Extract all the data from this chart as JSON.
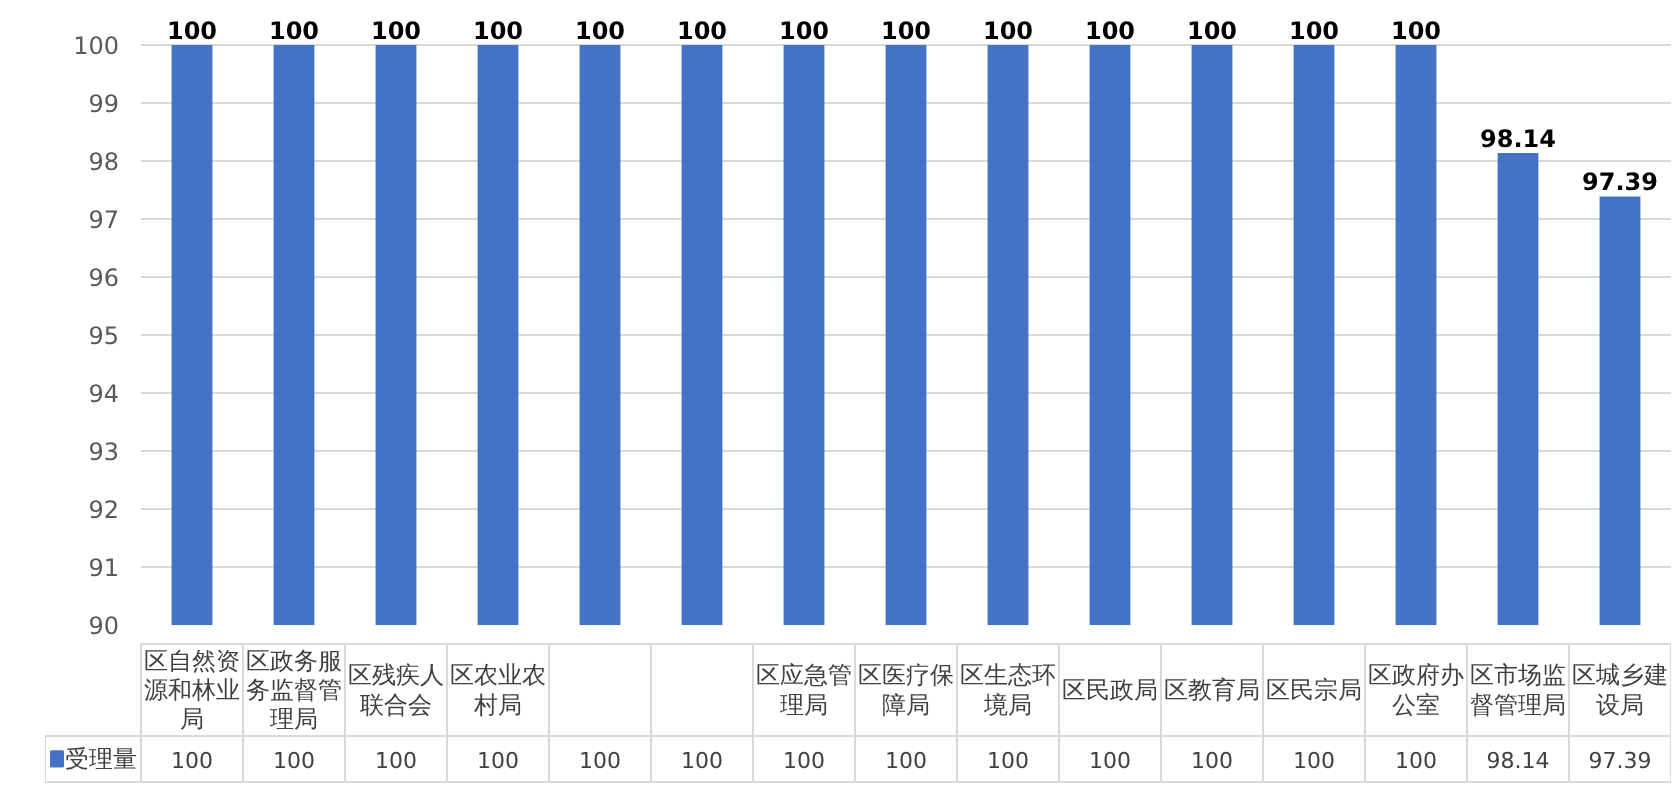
{
  "chart_data": {
    "type": "bar",
    "categories": [
      "区自然资源和林业局",
      "区政务服务监督管理局",
      "区残疾人联合会",
      "区农业农村局",
      null,
      null,
      "区应急管理局",
      "区医疗保障局",
      "区生态环境局",
      "区民政局",
      "区教育局",
      "区民宗局",
      "区政府办公室",
      "区市场监督管理局",
      "区城乡建设局"
    ],
    "series": [
      {
        "name": "受理量",
        "color": "#4472c4",
        "values": [
          100,
          100,
          100,
          100,
          100,
          100,
          100,
          100,
          100,
          100,
          100,
          100,
          100,
          98.14,
          97.39
        ],
        "value_labels": [
          "100",
          "100",
          "100",
          "100",
          "100",
          "100",
          "100",
          "100",
          "100",
          "100",
          "100",
          "100",
          "100",
          "98.14",
          "97.39"
        ]
      }
    ],
    "ylim": [
      90,
      100
    ],
    "yticks": [
      90,
      91,
      92,
      93,
      94,
      95,
      96,
      97,
      98,
      99,
      100
    ],
    "grid": "y",
    "data_labels": true,
    "legend": "bottom"
  }
}
